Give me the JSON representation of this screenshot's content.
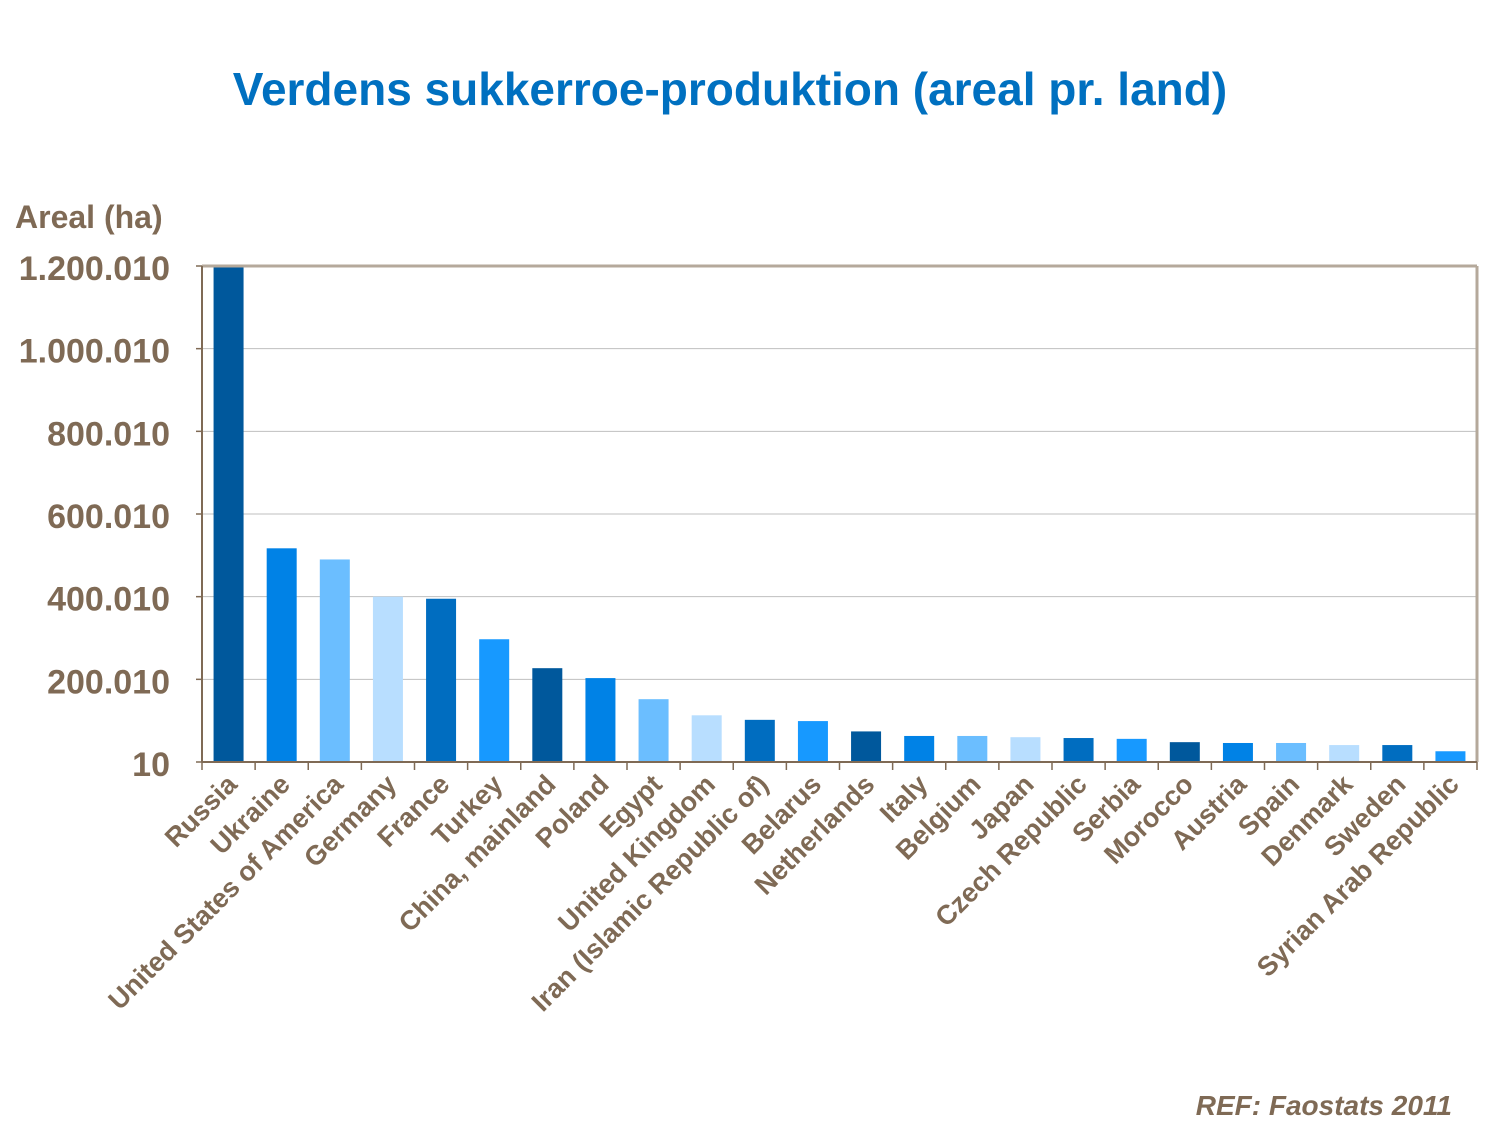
{
  "chart_data": {
    "type": "bar",
    "title": "Verdens sukkerroe-produktion (areal pr. land)",
    "ylabel": "Areal (ha)",
    "xlabel": "",
    "ylim": [
      10,
      1200010
    ],
    "yticks": [
      "1.200.010",
      "1.000.010",
      "800.010",
      "600.010",
      "400.010",
      "200.010",
      "10"
    ],
    "ytick_values": [
      1200010,
      1000010,
      800010,
      600010,
      400010,
      200010,
      10
    ],
    "grid": true,
    "categories": [
      "Russia",
      "Ukraine",
      "United States of America",
      "Germany",
      "France",
      "Turkey",
      "China, mainland",
      "Poland",
      "Egypt",
      "United Kingdom",
      "Iran (Islamic Republic of)",
      "Belarus",
      "Netherlands",
      "Italy",
      "Belgium",
      "Japan",
      "Czech Republic",
      "Serbia",
      "Morocco",
      "Austria",
      "Spain",
      "Denmark",
      "Sweden",
      "Syrian Arab Republic"
    ],
    "values": [
      1200010,
      517000,
      490000,
      400000,
      395000,
      297000,
      227000,
      203000,
      152000,
      113000,
      102000,
      99000,
      74000,
      63000,
      63000,
      60000,
      58000,
      56000,
      48000,
      46000,
      46000,
      41000,
      41000,
      26000
    ],
    "colors": [
      "#00589C",
      "#0082E6",
      "#6BBEFF",
      "#B8DEFF",
      "#006DC0",
      "#1799FF",
      "#00589C",
      "#0082E6",
      "#6BBEFF",
      "#B8DEFF",
      "#006DC0",
      "#1799FF",
      "#00589C",
      "#0082E6",
      "#6BBEFF",
      "#B8DEFF",
      "#006DC0",
      "#1799FF",
      "#00589C",
      "#0082E6",
      "#6BBEFF",
      "#B8DEFF",
      "#006DC0",
      "#1799FF"
    ],
    "axis_color": "#7F6A55",
    "plot_border_color": "#B5A99B"
  },
  "reference": "REF: Faostats 2011"
}
